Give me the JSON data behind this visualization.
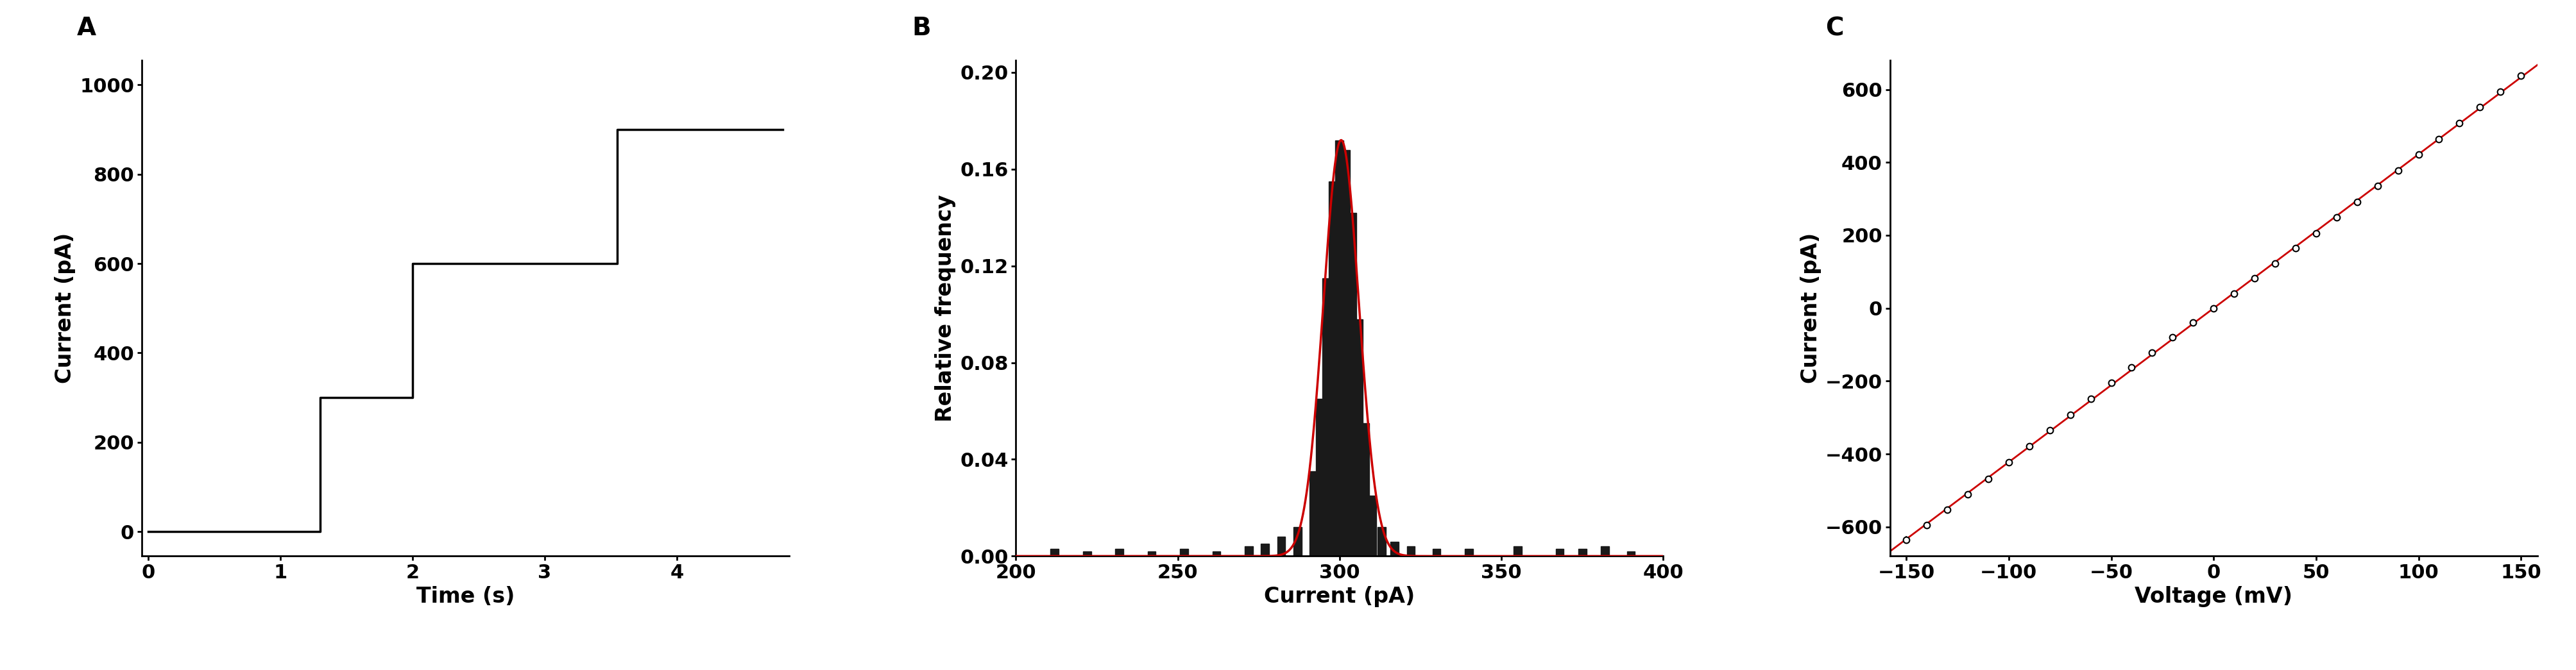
{
  "panel_A": {
    "label": "A",
    "step_x": [
      0,
      1.3,
      1.3,
      2.0,
      2.0,
      3.55,
      3.55,
      4.8
    ],
    "step_y": [
      0,
      0,
      300,
      300,
      600,
      600,
      900,
      900
    ],
    "xlim": [
      -0.05,
      4.85
    ],
    "ylim": [
      -55,
      1055
    ],
    "xticks": [
      0,
      1,
      2,
      3,
      4
    ],
    "yticks": [
      0,
      200,
      400,
      600,
      800,
      1000
    ],
    "xlabel": "Time (s)",
    "ylabel": "Current (pA)",
    "line_color": "#000000",
    "line_width": 2.5
  },
  "panel_B": {
    "label": "B",
    "hist_centers": [
      212,
      222,
      232,
      242,
      252,
      262,
      272,
      277,
      282,
      287,
      292,
      294,
      296,
      298,
      300,
      302,
      304,
      306,
      308,
      310,
      313,
      317,
      322,
      330,
      340,
      355,
      368,
      375,
      382,
      390
    ],
    "hist_heights": [
      0.003,
      0.002,
      0.003,
      0.002,
      0.003,
      0.002,
      0.004,
      0.005,
      0.008,
      0.012,
      0.035,
      0.065,
      0.115,
      0.155,
      0.172,
      0.168,
      0.142,
      0.098,
      0.055,
      0.025,
      0.012,
      0.006,
      0.004,
      0.003,
      0.003,
      0.004,
      0.003,
      0.003,
      0.004,
      0.002
    ],
    "bar_color": "#1a1a1a",
    "bar_width": 2.5,
    "gauss_mean": 300.5,
    "gauss_std": 5.5,
    "gauss_amp": 0.172,
    "gauss_color": "#cc0000",
    "gauss_lw": 2.5,
    "xlim": [
      200,
      400
    ],
    "ylim": [
      0,
      0.205
    ],
    "xticks": [
      200,
      250,
      300,
      350,
      400
    ],
    "yticks": [
      0.0,
      0.04,
      0.08,
      0.12,
      0.16,
      0.2
    ],
    "xlabel": "Current (pA)",
    "ylabel": "Relative frequency"
  },
  "panel_C": {
    "label": "C",
    "voltages": [
      -150,
      -140,
      -130,
      -120,
      -110,
      -100,
      -90,
      -80,
      -70,
      -60,
      -50,
      -40,
      -30,
      -20,
      -10,
      0,
      10,
      20,
      30,
      40,
      50,
      60,
      70,
      80,
      90,
      100,
      110,
      120,
      130,
      140,
      150
    ],
    "currents": [
      -635,
      -595,
      -553,
      -510,
      -468,
      -422,
      -378,
      -335,
      -292,
      -248,
      -205,
      -163,
      -121,
      -80,
      -40,
      0,
      40,
      82,
      122,
      164,
      206,
      249,
      292,
      335,
      378,
      421,
      464,
      508,
      552,
      594,
      637
    ],
    "errors": [
      10,
      9,
      9,
      9,
      8,
      8,
      8,
      7,
      7,
      7,
      6,
      6,
      6,
      6,
      6,
      5,
      6,
      6,
      6,
      6,
      6,
      7,
      7,
      7,
      8,
      8,
      8,
      9,
      9,
      9,
      10
    ],
    "marker": "o",
    "marker_size": 7,
    "marker_color": "#ffffff",
    "marker_edge_color": "#000000",
    "marker_edge_width": 1.5,
    "fit_color": "#cc0000",
    "fit_lw": 2.0,
    "xlim": [
      -158,
      158
    ],
    "ylim": [
      -680,
      680
    ],
    "xticks": [
      -150,
      -100,
      -50,
      0,
      50,
      100,
      150
    ],
    "yticks": [
      -600,
      -400,
      -200,
      0,
      200,
      400,
      600
    ],
    "xlabel": "Voltage (mV)",
    "ylabel": "Current (pA)"
  },
  "background_color": "#ffffff",
  "label_fontsize": 28,
  "axis_fontsize": 24,
  "tick_fontsize": 22,
  "label_fontweight": "bold"
}
